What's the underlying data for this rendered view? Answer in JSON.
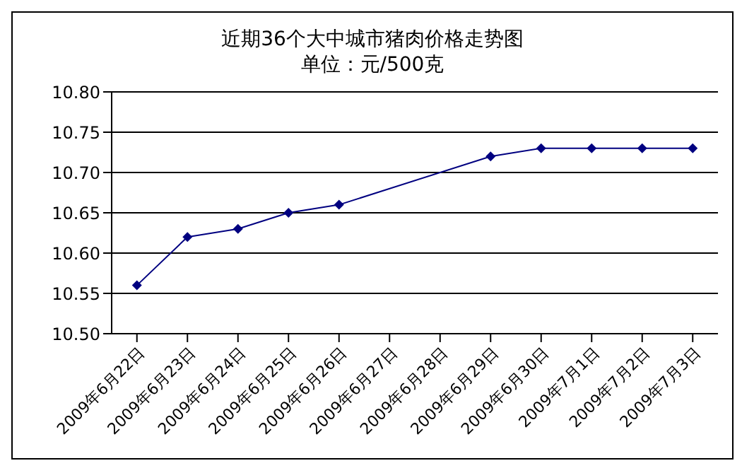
{
  "chart_data": {
    "type": "line",
    "title": "近期36个大中城市猪肉价格走势图",
    "subtitle": "单位：元/500克",
    "categories": [
      "2009年6月22日",
      "2009年6月23日",
      "2009年6月24日",
      "2009年6月25日",
      "2009年6月26日",
      "2009年6月27日",
      "2009年6月28日",
      "2009年6月29日",
      "2009年6月30日",
      "2009年7月1日",
      "2009年7月2日",
      "2009年7月3日"
    ],
    "series": [
      {
        "color": "#000080",
        "values": [
          10.56,
          10.62,
          10.63,
          10.65,
          10.66,
          null,
          null,
          10.72,
          10.73,
          10.73,
          10.73,
          10.73
        ]
      }
    ],
    "ylim": [
      10.5,
      10.8
    ],
    "yticks": [
      {
        "value": 10.5,
        "label": "10.50"
      },
      10.55,
      {
        "value": 10.6,
        "label": "10.60"
      },
      10.65,
      {
        "value": 10.7,
        "label": "10.70"
      },
      10.75,
      {
        "value": 10.8,
        "label": "10.80"
      }
    ],
    "grid": "y",
    "legend": false,
    "marker": "diamond",
    "line_style": "solid"
  }
}
